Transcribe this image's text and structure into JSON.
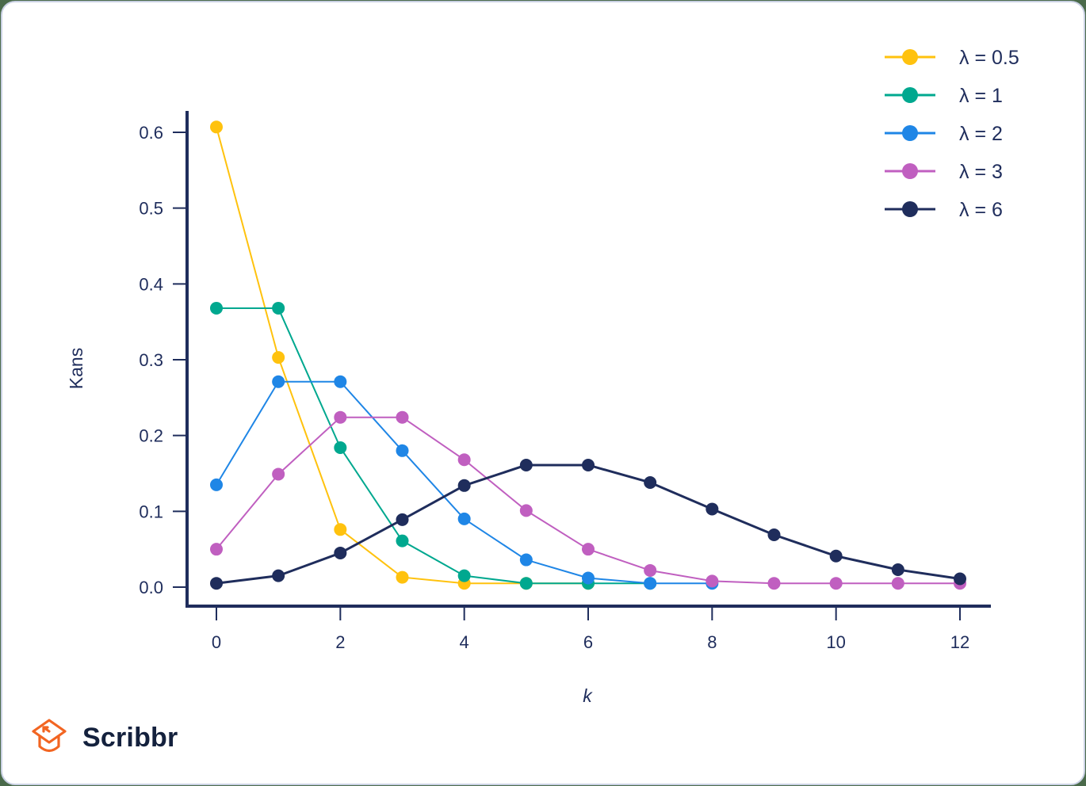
{
  "chart_data": {
    "type": "line",
    "title": "",
    "xlabel": "k",
    "ylabel": "Kans",
    "xlim": [
      0,
      12
    ],
    "ylim": [
      0.0,
      0.6
    ],
    "x_ticks": [
      "0",
      "2",
      "4",
      "6",
      "8",
      "10",
      "12"
    ],
    "y_ticks": [
      "0.0",
      "0.1",
      "0.2",
      "0.3",
      "0.4",
      "0.5",
      "0.6"
    ],
    "grid": false,
    "legend_position": "top-right",
    "x": [
      0,
      1,
      2,
      3,
      4,
      5,
      6,
      7,
      8,
      9,
      10,
      11,
      12
    ],
    "series": [
      {
        "name": "λ = 0.5",
        "color": "#ffc20e",
        "values": [
          0.607,
          0.303,
          0.076,
          0.013,
          0.002,
          0.0,
          0.0
        ]
      },
      {
        "name": "λ = 1",
        "color": "#00a88f",
        "values": [
          0.368,
          0.368,
          0.184,
          0.061,
          0.015,
          0.003,
          0.001,
          0.0
        ]
      },
      {
        "name": "λ = 2",
        "color": "#1f86e6",
        "values": [
          0.135,
          0.271,
          0.271,
          0.18,
          0.09,
          0.036,
          0.012,
          0.003,
          0.001
        ]
      },
      {
        "name": "λ = 3",
        "color": "#c05fc0",
        "values": [
          0.05,
          0.149,
          0.224,
          0.224,
          0.168,
          0.101,
          0.05,
          0.022,
          0.008,
          0.003,
          0.001,
          0.0,
          0.0
        ]
      },
      {
        "name": "λ = 6",
        "color": "#1f2d5c",
        "values": [
          0.002,
          0.015,
          0.045,
          0.089,
          0.134,
          0.161,
          0.161,
          0.138,
          0.103,
          0.069,
          0.041,
          0.023,
          0.011
        ]
      }
    ]
  },
  "axes": {
    "xlabel": "k",
    "ylabel": "Kans"
  },
  "legend": [
    {
      "label": "λ = 0.5",
      "color": "#ffc20e"
    },
    {
      "label": "λ = 1",
      "color": "#00a88f"
    },
    {
      "label": "λ = 2",
      "color": "#1f86e6"
    },
    {
      "label": "λ = 3",
      "color": "#c05fc0"
    },
    {
      "label": "λ = 6",
      "color": "#1f2d5c"
    }
  ],
  "branding": {
    "logo_text": "Scribbr",
    "logo_icon": "graduation-cap-icon",
    "logo_color": "#f26522"
  }
}
